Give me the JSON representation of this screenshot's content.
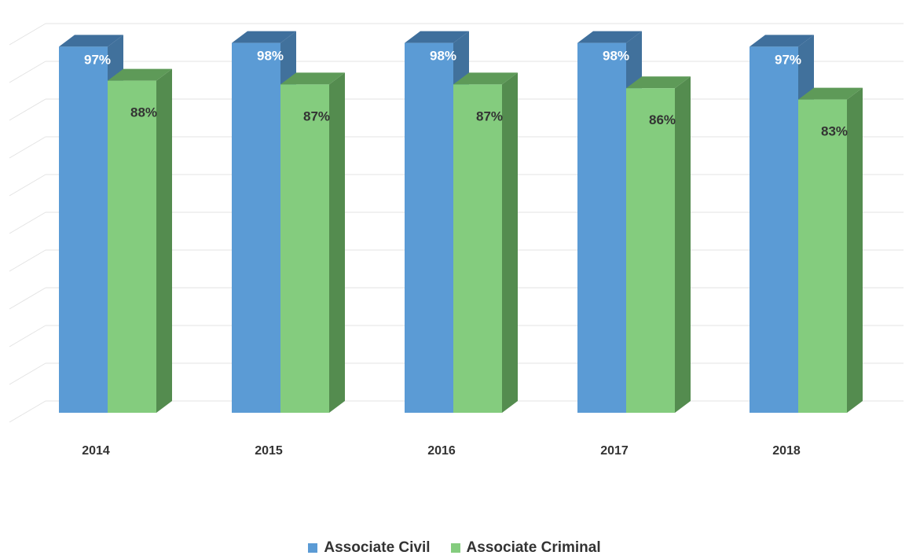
{
  "chart_data": {
    "type": "bar",
    "categories": [
      "2014",
      "2015",
      "2016",
      "2017",
      "2018"
    ],
    "series": [
      {
        "name": "Associate Civil",
        "values": [
          97,
          98,
          98,
          98,
          97
        ],
        "labels": [
          "97%",
          "98%",
          "98%",
          "98%",
          "97%"
        ]
      },
      {
        "name": "Associate Criminal",
        "values": [
          88,
          87,
          87,
          86,
          83
        ],
        "labels": [
          "88%",
          "87%",
          "87%",
          "86%",
          "83%"
        ]
      }
    ],
    "ylim": [
      0,
      100
    ],
    "grid": true,
    "legend_position": "bottom",
    "bar_style": "3d",
    "colors": {
      "civil_front": "#5b9bd5",
      "civil_side": "#41719c",
      "civil_top": "#3f6f9c",
      "criminal_front": "#84cc7e",
      "criminal_side": "#548c4f",
      "criminal_top": "#5e9a58",
      "grid": "#e3e3e3",
      "label_light": "#ffffff",
      "label_dark": "#333333"
    }
  }
}
